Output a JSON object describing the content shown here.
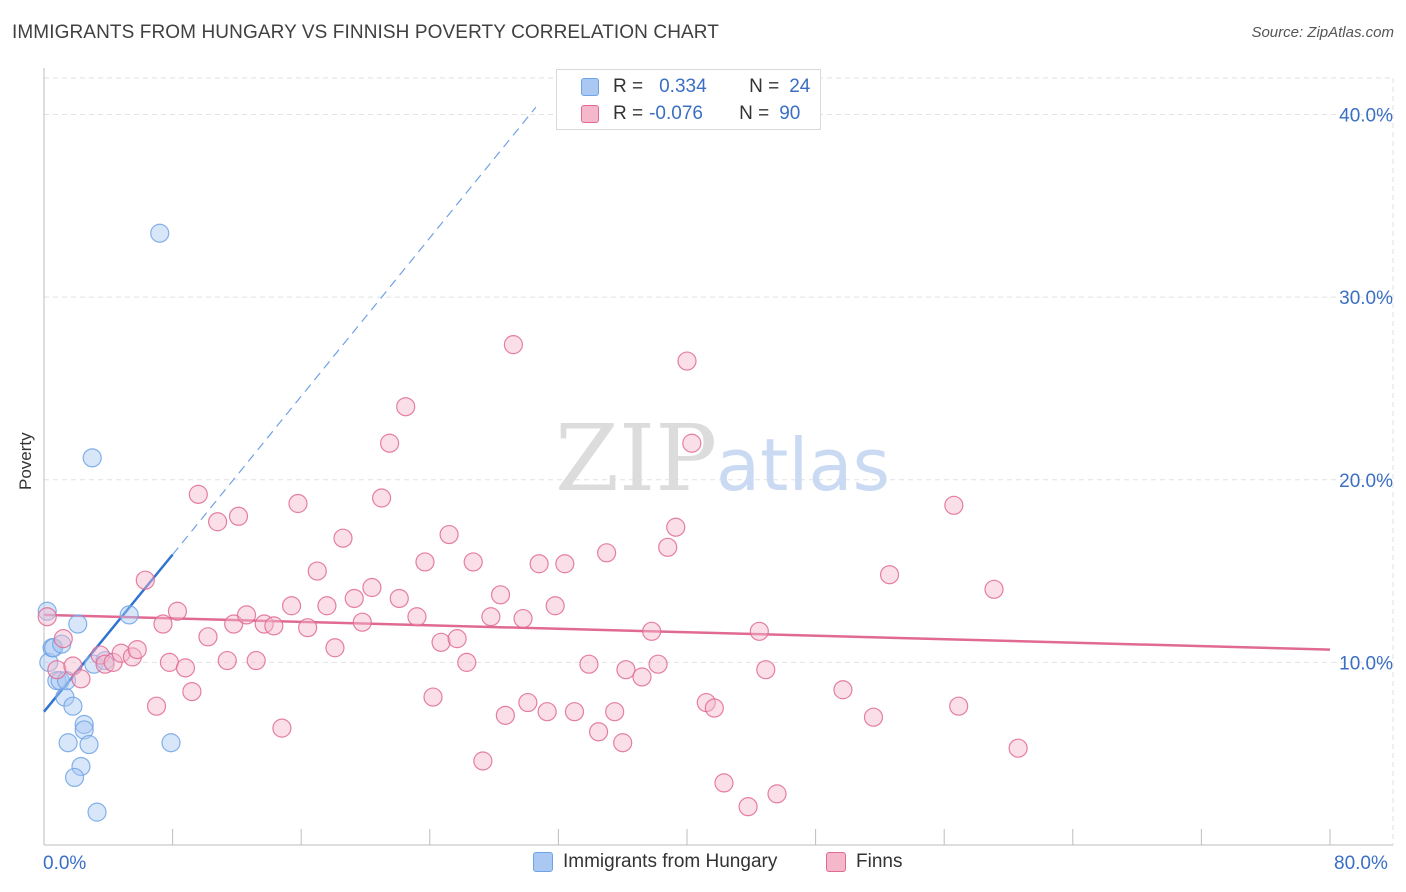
{
  "header": {
    "title": "IMMIGRANTS FROM HUNGARY VS FINNISH POVERTY CORRELATION CHART",
    "source": "Source: ZipAtlas.com"
  },
  "watermark": {
    "zip": "ZIP",
    "atlas": "atlas"
  },
  "legend": {
    "rows": [
      {
        "r_label": "R =",
        "r_value": "0.334",
        "n_label": "N =",
        "n_value": "24",
        "color": "#a9c8f2"
      },
      {
        "r_label": "R =",
        "r_value": "-0.076",
        "n_label": "N =",
        "n_value": "90",
        "color": "#f5b8cb"
      }
    ]
  },
  "bottom_legend": {
    "items": [
      {
        "label": "Immigrants from Hungary",
        "color": "#a9c8f2"
      },
      {
        "label": "Finns",
        "color": "#f5b8cb"
      }
    ]
  },
  "chart_data": {
    "type": "scatter",
    "title": "IMMIGRANTS FROM HUNGARY VS FINNISH POVERTY CORRELATION CHART",
    "xlabel": "",
    "ylabel": "Poverty",
    "xlim": [
      0,
      80
    ],
    "ylim": [
      0,
      42
    ],
    "x_tick_labels": [
      "0.0%",
      "80.0%"
    ],
    "y_tick_labels": [
      "10.0%",
      "20.0%",
      "30.0%",
      "40.0%"
    ],
    "y_ticks": [
      10,
      20,
      30,
      40
    ],
    "grid": true,
    "legend_position": "top-center",
    "series": [
      {
        "name": "Immigrants from Hungary",
        "color": "#6fa3e6",
        "fill": "#a9c8f2",
        "trend": {
          "x": [
            0,
            8
          ],
          "y": [
            7.3,
            15.9
          ],
          "extend_to_x": 30.6,
          "extend_to_y": 40.4
        },
        "points": [
          [
            0.2,
            12.8
          ],
          [
            0.3,
            10.0
          ],
          [
            0.5,
            10.8
          ],
          [
            0.6,
            10.8
          ],
          [
            0.8,
            9.0
          ],
          [
            1.0,
            9.0
          ],
          [
            1.1,
            11.0
          ],
          [
            1.3,
            8.1
          ],
          [
            1.4,
            9.0
          ],
          [
            1.5,
            5.6
          ],
          [
            1.8,
            7.6
          ],
          [
            2.1,
            12.1
          ],
          [
            2.3,
            4.3
          ],
          [
            2.5,
            6.6
          ],
          [
            2.5,
            6.3
          ],
          [
            2.8,
            5.5
          ],
          [
            3.0,
            21.2
          ],
          [
            3.1,
            9.9
          ],
          [
            3.3,
            1.8
          ],
          [
            3.8,
            10.1
          ],
          [
            5.3,
            12.6
          ],
          [
            7.2,
            33.5
          ],
          [
            7.9,
            5.6
          ],
          [
            1.9,
            3.7
          ]
        ]
      },
      {
        "name": "Finns",
        "color": "#e06a94",
        "fill": "#f5b8cb",
        "trend": {
          "x": [
            0,
            80
          ],
          "y": [
            12.6,
            10.7
          ]
        },
        "points": [
          [
            0.2,
            12.5
          ],
          [
            0.8,
            9.6
          ],
          [
            1.2,
            11.3
          ],
          [
            1.8,
            9.8
          ],
          [
            2.3,
            9.1
          ],
          [
            3.5,
            10.4
          ],
          [
            3.8,
            9.9
          ],
          [
            4.3,
            10.0
          ],
          [
            4.8,
            10.5
          ],
          [
            5.5,
            10.3
          ],
          [
            5.8,
            10.7
          ],
          [
            6.3,
            14.5
          ],
          [
            7.0,
            7.6
          ],
          [
            7.4,
            12.1
          ],
          [
            7.8,
            10.0
          ],
          [
            8.3,
            12.8
          ],
          [
            8.8,
            9.7
          ],
          [
            9.2,
            8.4
          ],
          [
            9.6,
            19.2
          ],
          [
            10.2,
            11.4
          ],
          [
            10.8,
            17.7
          ],
          [
            11.4,
            10.1
          ],
          [
            11.8,
            12.1
          ],
          [
            12.1,
            18.0
          ],
          [
            12.6,
            12.6
          ],
          [
            13.2,
            10.1
          ],
          [
            13.7,
            12.1
          ],
          [
            14.3,
            12.0
          ],
          [
            14.8,
            6.4
          ],
          [
            15.4,
            13.1
          ],
          [
            15.8,
            18.7
          ],
          [
            16.4,
            11.9
          ],
          [
            17.0,
            15.0
          ],
          [
            17.6,
            13.1
          ],
          [
            18.1,
            10.8
          ],
          [
            18.6,
            16.8
          ],
          [
            19.3,
            13.5
          ],
          [
            19.8,
            12.2
          ],
          [
            20.4,
            14.1
          ],
          [
            21.0,
            19.0
          ],
          [
            21.5,
            22.0
          ],
          [
            22.1,
            13.5
          ],
          [
            22.5,
            24.0
          ],
          [
            23.2,
            12.5
          ],
          [
            23.7,
            15.5
          ],
          [
            24.2,
            8.1
          ],
          [
            24.7,
            11.1
          ],
          [
            25.2,
            17.0
          ],
          [
            25.7,
            11.3
          ],
          [
            26.3,
            10.0
          ],
          [
            26.7,
            15.5
          ],
          [
            27.3,
            4.6
          ],
          [
            27.8,
            12.5
          ],
          [
            28.4,
            13.7
          ],
          [
            28.7,
            7.1
          ],
          [
            29.2,
            27.4
          ],
          [
            29.8,
            12.4
          ],
          [
            30.1,
            7.8
          ],
          [
            30.8,
            15.4
          ],
          [
            31.3,
            7.3
          ],
          [
            31.8,
            13.1
          ],
          [
            32.4,
            15.4
          ],
          [
            33.0,
            7.3
          ],
          [
            33.9,
            9.9
          ],
          [
            34.5,
            6.2
          ],
          [
            35.0,
            16.0
          ],
          [
            35.5,
            7.3
          ],
          [
            36.0,
            5.6
          ],
          [
            36.2,
            9.6
          ],
          [
            37.2,
            9.2
          ],
          [
            37.8,
            11.7
          ],
          [
            38.2,
            9.9
          ],
          [
            38.8,
            16.3
          ],
          [
            39.3,
            17.4
          ],
          [
            40.0,
            26.5
          ],
          [
            40.3,
            22.0
          ],
          [
            41.2,
            7.8
          ],
          [
            41.7,
            7.5
          ],
          [
            42.3,
            3.4
          ],
          [
            43.8,
            2.1
          ],
          [
            44.5,
            11.7
          ],
          [
            44.9,
            9.6
          ],
          [
            45.6,
            2.8
          ],
          [
            49.7,
            8.5
          ],
          [
            51.6,
            7.0
          ],
          [
            52.6,
            14.8
          ],
          [
            56.6,
            18.6
          ],
          [
            56.9,
            7.6
          ],
          [
            59.1,
            14.0
          ],
          [
            60.6,
            5.3
          ]
        ]
      }
    ]
  }
}
